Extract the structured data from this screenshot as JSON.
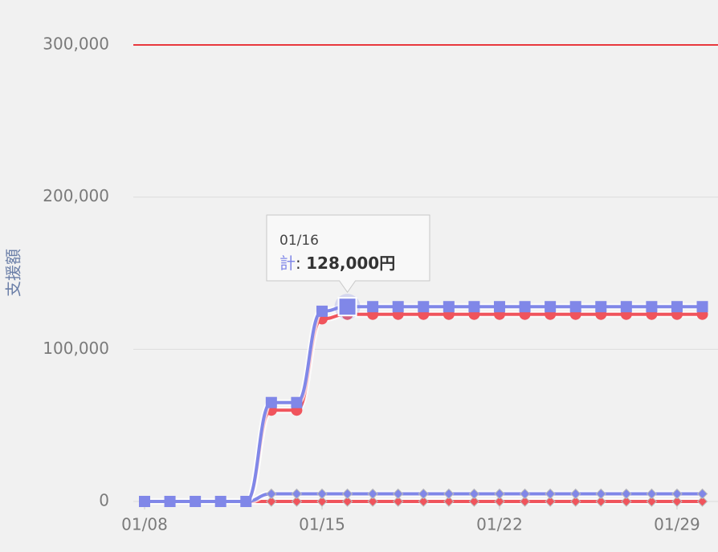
{
  "chart_data": {
    "type": "line",
    "y_axis_title": "支援額",
    "categories": [
      "01/08",
      null,
      null,
      null,
      null,
      null,
      null,
      "01/15",
      null,
      null,
      null,
      null,
      null,
      null,
      "01/22",
      null,
      null,
      null,
      null,
      null,
      null,
      "01/29",
      null
    ],
    "series": [
      {
        "name": "計",
        "color": "#8087e8",
        "marker": "square",
        "values": [
          0,
          0,
          0,
          0,
          0,
          65000,
          65000,
          125000,
          128000,
          128000,
          128000,
          128000,
          128000,
          128000,
          128000,
          128000,
          128000,
          128000,
          128000,
          128000,
          128000,
          128000,
          128000
        ]
      },
      {
        "color": "#f0545c",
        "marker": "circle",
        "values": [
          null,
          null,
          null,
          null,
          0,
          60000,
          60000,
          120000,
          123000,
          123000,
          123000,
          123000,
          123000,
          123000,
          123000,
          123000,
          123000,
          123000,
          123000,
          123000,
          123000,
          123000,
          123000
        ]
      },
      {
        "color": "#8087e8",
        "marker": "diamond",
        "values": [
          null,
          null,
          null,
          null,
          0,
          5000,
          5000,
          5000,
          5000,
          5000,
          5000,
          5000,
          5000,
          5000,
          5000,
          5000,
          5000,
          5000,
          5000,
          5000,
          5000,
          5000,
          5000
        ]
      },
      {
        "color": "#f0545c",
        "marker": "diamond",
        "values": [
          null,
          null,
          null,
          null,
          0,
          0,
          0,
          0,
          0,
          0,
          0,
          0,
          0,
          0,
          0,
          0,
          0,
          0,
          0,
          0,
          0,
          0,
          0
        ]
      }
    ],
    "ylim": [
      0,
      300000
    ],
    "yticks": [
      0,
      {
        "value": 100000,
        "label": "100,000"
      },
      {
        "value": 200000,
        "label": "200,000"
      },
      {
        "value": 300000,
        "label": "300,000"
      }
    ],
    "grid": true,
    "plot_line": {
      "value": 300000,
      "color": "#e8383d"
    },
    "tooltip": {
      "index": 8,
      "x_label": "01/16",
      "separator": ": ",
      "value": 128000,
      "value_label": "128,000円"
    }
  }
}
